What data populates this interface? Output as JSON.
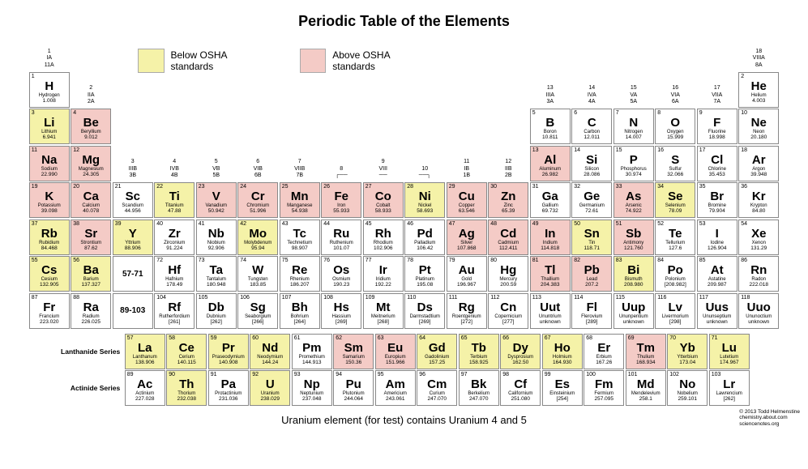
{
  "title": "Periodic Table of the Elements",
  "legend": {
    "below": {
      "label": "Below OSHA standards",
      "color": "#f5f2a8"
    },
    "above": {
      "label": "Above OSHA standards",
      "color": "#f4cbc6"
    }
  },
  "footnote": "Uranium element (for test) contains Uranium 4 and 5",
  "copyright": {
    "line1": "© 2013 Todd Helmenstine",
    "line2": "chemistry.about.com",
    "line3": "sciencenotes.org"
  },
  "series": {
    "lanth": "Lanthanide Series",
    "act": "Actinide Series",
    "lanth_range": "57-71",
    "act_range": "89-103"
  },
  "group_headers": [
    {
      "col": 1,
      "row": 1,
      "lines": [
        "1",
        "IA",
        "11A"
      ]
    },
    {
      "col": 2,
      "row": 2,
      "lines": [
        "2",
        "IIA",
        "2A"
      ]
    },
    {
      "col": 3,
      "row": 4,
      "lines": [
        "3",
        "IIIB",
        "3B"
      ]
    },
    {
      "col": 4,
      "row": 4,
      "lines": [
        "4",
        "IVB",
        "4B"
      ]
    },
    {
      "col": 5,
      "row": 4,
      "lines": [
        "5",
        "VB",
        "5B"
      ]
    },
    {
      "col": 6,
      "row": 4,
      "lines": [
        "6",
        "VIB",
        "6B"
      ]
    },
    {
      "col": 7,
      "row": 4,
      "lines": [
        "7",
        "VIIB",
        "7B"
      ]
    },
    {
      "col": 8,
      "row": 4,
      "lines": [
        "8",
        "",
        "┌──"
      ]
    },
    {
      "col": 9,
      "row": 4,
      "lines": [
        "9",
        "VIII",
        "── "
      ]
    },
    {
      "col": 10,
      "row": 4,
      "lines": [
        "10",
        "",
        "──┐"
      ]
    },
    {
      "col": 11,
      "row": 4,
      "lines": [
        "11",
        "IB",
        "1B"
      ]
    },
    {
      "col": 12,
      "row": 4,
      "lines": [
        "12",
        "IIB",
        "2B"
      ]
    },
    {
      "col": 13,
      "row": 2,
      "lines": [
        "13",
        "IIIA",
        "3A"
      ]
    },
    {
      "col": 14,
      "row": 2,
      "lines": [
        "14",
        "IVA",
        "4A"
      ]
    },
    {
      "col": 15,
      "row": 2,
      "lines": [
        "15",
        "VA",
        "5A"
      ]
    },
    {
      "col": 16,
      "row": 2,
      "lines": [
        "16",
        "VIA",
        "6A"
      ]
    },
    {
      "col": 17,
      "row": 2,
      "lines": [
        "17",
        "VIIA",
        "7A"
      ]
    },
    {
      "col": 18,
      "row": 1,
      "lines": [
        "18",
        "VIIIA",
        "8A"
      ]
    }
  ],
  "elements": [
    {
      "n": 1,
      "s": "H",
      "nm": "Hydrogen",
      "w": "1.008",
      "g": 1,
      "p": 1,
      "c": ""
    },
    {
      "n": 2,
      "s": "He",
      "nm": "Helium",
      "w": "4.003",
      "g": 18,
      "p": 1,
      "c": ""
    },
    {
      "n": 3,
      "s": "Li",
      "nm": "Lithium",
      "w": "6.941",
      "g": 1,
      "p": 2,
      "c": "below"
    },
    {
      "n": 4,
      "s": "Be",
      "nm": "Beryllium",
      "w": "9.012",
      "g": 2,
      "p": 2,
      "c": "above"
    },
    {
      "n": 5,
      "s": "B",
      "nm": "Boron",
      "w": "10.811",
      "g": 13,
      "p": 2,
      "c": ""
    },
    {
      "n": 6,
      "s": "C",
      "nm": "Carbon",
      "w": "12.011",
      "g": 14,
      "p": 2,
      "c": ""
    },
    {
      "n": 7,
      "s": "N",
      "nm": "Nitrogen",
      "w": "14.007",
      "g": 15,
      "p": 2,
      "c": ""
    },
    {
      "n": 8,
      "s": "O",
      "nm": "Oxygen",
      "w": "15.999",
      "g": 16,
      "p": 2,
      "c": ""
    },
    {
      "n": 9,
      "s": "F",
      "nm": "Fluorine",
      "w": "18.998",
      "g": 17,
      "p": 2,
      "c": ""
    },
    {
      "n": 10,
      "s": "Ne",
      "nm": "Neon",
      "w": "20.180",
      "g": 18,
      "p": 2,
      "c": ""
    },
    {
      "n": 11,
      "s": "Na",
      "nm": "Sodium",
      "w": "22.990",
      "g": 1,
      "p": 3,
      "c": "above"
    },
    {
      "n": 12,
      "s": "Mg",
      "nm": "Magnesium",
      "w": "24.305",
      "g": 2,
      "p": 3,
      "c": "above"
    },
    {
      "n": 13,
      "s": "Al",
      "nm": "Aluminum",
      "w": "26.982",
      "g": 13,
      "p": 3,
      "c": "above"
    },
    {
      "n": 14,
      "s": "Si",
      "nm": "Silicon",
      "w": "28.086",
      "g": 14,
      "p": 3,
      "c": ""
    },
    {
      "n": 15,
      "s": "P",
      "nm": "Phosphorus",
      "w": "30.974",
      "g": 15,
      "p": 3,
      "c": ""
    },
    {
      "n": 16,
      "s": "S",
      "nm": "Sulfur",
      "w": "32.066",
      "g": 16,
      "p": 3,
      "c": ""
    },
    {
      "n": 17,
      "s": "Cl",
      "nm": "Chlorine",
      "w": "35.453",
      "g": 17,
      "p": 3,
      "c": ""
    },
    {
      "n": 18,
      "s": "Ar",
      "nm": "Argon",
      "w": "39.948",
      "g": 18,
      "p": 3,
      "c": ""
    },
    {
      "n": 19,
      "s": "K",
      "nm": "Potassium",
      "w": "39.098",
      "g": 1,
      "p": 4,
      "c": "above"
    },
    {
      "n": 20,
      "s": "Ca",
      "nm": "Calcium",
      "w": "40.078",
      "g": 2,
      "p": 4,
      "c": "above"
    },
    {
      "n": 21,
      "s": "Sc",
      "nm": "Scandium",
      "w": "44.956",
      "g": 3,
      "p": 4,
      "c": ""
    },
    {
      "n": 22,
      "s": "Ti",
      "nm": "Titanium",
      "w": "47.88",
      "g": 4,
      "p": 4,
      "c": "below"
    },
    {
      "n": 23,
      "s": "V",
      "nm": "Vanadium",
      "w": "50.942",
      "g": 5,
      "p": 4,
      "c": "above"
    },
    {
      "n": 24,
      "s": "Cr",
      "nm": "Chromium",
      "w": "51.996",
      "g": 6,
      "p": 4,
      "c": "above"
    },
    {
      "n": 25,
      "s": "Mn",
      "nm": "Manganese",
      "w": "54.938",
      "g": 7,
      "p": 4,
      "c": "above"
    },
    {
      "n": 26,
      "s": "Fe",
      "nm": "Iron",
      "w": "55.933",
      "g": 8,
      "p": 4,
      "c": "above"
    },
    {
      "n": 27,
      "s": "Co",
      "nm": "Cobalt",
      "w": "58.933",
      "g": 9,
      "p": 4,
      "c": "above"
    },
    {
      "n": 28,
      "s": "Ni",
      "nm": "Nickel",
      "w": "58.693",
      "g": 10,
      "p": 4,
      "c": "below"
    },
    {
      "n": 29,
      "s": "Cu",
      "nm": "Copper",
      "w": "63.546",
      "g": 11,
      "p": 4,
      "c": "above"
    },
    {
      "n": 30,
      "s": "Zn",
      "nm": "Zinc",
      "w": "65.39",
      "g": 12,
      "p": 4,
      "c": "above"
    },
    {
      "n": 31,
      "s": "Ga",
      "nm": "Gallium",
      "w": "69.732",
      "g": 13,
      "p": 4,
      "c": ""
    },
    {
      "n": 32,
      "s": "Ge",
      "nm": "Germanium",
      "w": "72.61",
      "g": 14,
      "p": 4,
      "c": ""
    },
    {
      "n": 33,
      "s": "As",
      "nm": "Arsenic",
      "w": "74.922",
      "g": 15,
      "p": 4,
      "c": "above"
    },
    {
      "n": 34,
      "s": "Se",
      "nm": "Selenium",
      "w": "78.09",
      "g": 16,
      "p": 4,
      "c": "below"
    },
    {
      "n": 35,
      "s": "Br",
      "nm": "Bromine",
      "w": "79.904",
      "g": 17,
      "p": 4,
      "c": ""
    },
    {
      "n": 36,
      "s": "Kr",
      "nm": "Krypton",
      "w": "84.80",
      "g": 18,
      "p": 4,
      "c": ""
    },
    {
      "n": 37,
      "s": "Rb",
      "nm": "Rubidium",
      "w": "84.468",
      "g": 1,
      "p": 5,
      "c": "below"
    },
    {
      "n": 38,
      "s": "Sr",
      "nm": "Strontium",
      "w": "87.62",
      "g": 2,
      "p": 5,
      "c": "above"
    },
    {
      "n": 39,
      "s": "Y",
      "nm": "Yttrium",
      "w": "88.906",
      "g": 3,
      "p": 5,
      "c": "below"
    },
    {
      "n": 40,
      "s": "Zr",
      "nm": "Zirconium",
      "w": "91.224",
      "g": 4,
      "p": 5,
      "c": ""
    },
    {
      "n": 41,
      "s": "Nb",
      "nm": "Niobium",
      "w": "92.906",
      "g": 5,
      "p": 5,
      "c": ""
    },
    {
      "n": 42,
      "s": "Mo",
      "nm": "Molybdenum",
      "w": "95.94",
      "g": 6,
      "p": 5,
      "c": "below"
    },
    {
      "n": 43,
      "s": "Tc",
      "nm": "Technetium",
      "w": "98.907",
      "g": 7,
      "p": 5,
      "c": ""
    },
    {
      "n": 44,
      "s": "Ru",
      "nm": "Ruthenium",
      "w": "101.07",
      "g": 8,
      "p": 5,
      "c": ""
    },
    {
      "n": 45,
      "s": "Rh",
      "nm": "Rhodium",
      "w": "102.906",
      "g": 9,
      "p": 5,
      "c": ""
    },
    {
      "n": 46,
      "s": "Pd",
      "nm": "Palladium",
      "w": "106.42",
      "g": 10,
      "p": 5,
      "c": ""
    },
    {
      "n": 47,
      "s": "Ag",
      "nm": "Silver",
      "w": "107.868",
      "g": 11,
      "p": 5,
      "c": "above"
    },
    {
      "n": 48,
      "s": "Cd",
      "nm": "Cadmium",
      "w": "112.411",
      "g": 12,
      "p": 5,
      "c": "above"
    },
    {
      "n": 49,
      "s": "In",
      "nm": "Indium",
      "w": "114.818",
      "g": 13,
      "p": 5,
      "c": "above"
    },
    {
      "n": 50,
      "s": "Sn",
      "nm": "Tin",
      "w": "118.71",
      "g": 14,
      "p": 5,
      "c": "below"
    },
    {
      "n": 51,
      "s": "Sb",
      "nm": "Antimony",
      "w": "121.760",
      "g": 15,
      "p": 5,
      "c": "above"
    },
    {
      "n": 52,
      "s": "Te",
      "nm": "Tellurium",
      "w": "127.6",
      "g": 16,
      "p": 5,
      "c": ""
    },
    {
      "n": 53,
      "s": "I",
      "nm": "Iodine",
      "w": "126.904",
      "g": 17,
      "p": 5,
      "c": ""
    },
    {
      "n": 54,
      "s": "Xe",
      "nm": "Xenon",
      "w": "131.29",
      "g": 18,
      "p": 5,
      "c": ""
    },
    {
      "n": 55,
      "s": "Cs",
      "nm": "Cesium",
      "w": "132.905",
      "g": 1,
      "p": 6,
      "c": "below"
    },
    {
      "n": 56,
      "s": "Ba",
      "nm": "Barium",
      "w": "137.327",
      "g": 2,
      "p": 6,
      "c": "below"
    },
    {
      "n": 72,
      "s": "Hf",
      "nm": "Hafnium",
      "w": "178.49",
      "g": 4,
      "p": 6,
      "c": ""
    },
    {
      "n": 73,
      "s": "Ta",
      "nm": "Tantalum",
      "w": "180.948",
      "g": 5,
      "p": 6,
      "c": ""
    },
    {
      "n": 74,
      "s": "W",
      "nm": "Tungsten",
      "w": "183.85",
      "g": 6,
      "p": 6,
      "c": ""
    },
    {
      "n": 75,
      "s": "Re",
      "nm": "Rhenium",
      "w": "186.207",
      "g": 7,
      "p": 6,
      "c": ""
    },
    {
      "n": 76,
      "s": "Os",
      "nm": "Osmium",
      "w": "190.23",
      "g": 8,
      "p": 6,
      "c": ""
    },
    {
      "n": 77,
      "s": "Ir",
      "nm": "Iridium",
      "w": "192.22",
      "g": 9,
      "p": 6,
      "c": ""
    },
    {
      "n": 78,
      "s": "Pt",
      "nm": "Platinum",
      "w": "195.08",
      "g": 10,
      "p": 6,
      "c": ""
    },
    {
      "n": 79,
      "s": "Au",
      "nm": "Gold",
      "w": "196.967",
      "g": 11,
      "p": 6,
      "c": ""
    },
    {
      "n": 80,
      "s": "Hg",
      "nm": "Mercury",
      "w": "200.59",
      "g": 12,
      "p": 6,
      "c": ""
    },
    {
      "n": 81,
      "s": "Tl",
      "nm": "Thallium",
      "w": "204.383",
      "g": 13,
      "p": 6,
      "c": "above"
    },
    {
      "n": 82,
      "s": "Pb",
      "nm": "Lead",
      "w": "207.2",
      "g": 14,
      "p": 6,
      "c": "above"
    },
    {
      "n": 83,
      "s": "Bi",
      "nm": "Bismuth",
      "w": "208.980",
      "g": 15,
      "p": 6,
      "c": "below"
    },
    {
      "n": 84,
      "s": "Po",
      "nm": "Polonium",
      "w": "[208.982]",
      "g": 16,
      "p": 6,
      "c": ""
    },
    {
      "n": 85,
      "s": "At",
      "nm": "Astatine",
      "w": "209.987",
      "g": 17,
      "p": 6,
      "c": ""
    },
    {
      "n": 86,
      "s": "Rn",
      "nm": "Radon",
      "w": "222.018",
      "g": 18,
      "p": 6,
      "c": ""
    },
    {
      "n": 87,
      "s": "Fr",
      "nm": "Francium",
      "w": "223.020",
      "g": 1,
      "p": 7,
      "c": ""
    },
    {
      "n": 88,
      "s": "Ra",
      "nm": "Radium",
      "w": "226.025",
      "g": 2,
      "p": 7,
      "c": ""
    },
    {
      "n": 104,
      "s": "Rf",
      "nm": "Rutherfordium",
      "w": "[261]",
      "g": 4,
      "p": 7,
      "c": ""
    },
    {
      "n": 105,
      "s": "Db",
      "nm": "Dubnium",
      "w": "[262]",
      "g": 5,
      "p": 7,
      "c": ""
    },
    {
      "n": 106,
      "s": "Sg",
      "nm": "Seaborgium",
      "w": "[266]",
      "g": 6,
      "p": 7,
      "c": ""
    },
    {
      "n": 107,
      "s": "Bh",
      "nm": "Bohrium",
      "w": "[264]",
      "g": 7,
      "p": 7,
      "c": ""
    },
    {
      "n": 108,
      "s": "Hs",
      "nm": "Hassium",
      "w": "[269]",
      "g": 8,
      "p": 7,
      "c": ""
    },
    {
      "n": 109,
      "s": "Mt",
      "nm": "Meitnerium",
      "w": "[268]",
      "g": 9,
      "p": 7,
      "c": ""
    },
    {
      "n": 110,
      "s": "Ds",
      "nm": "Darmstadtium",
      "w": "[269]",
      "g": 10,
      "p": 7,
      "c": ""
    },
    {
      "n": 111,
      "s": "Rg",
      "nm": "Roentgenium",
      "w": "[272]",
      "g": 11,
      "p": 7,
      "c": ""
    },
    {
      "n": 112,
      "s": "Cn",
      "nm": "Copernicium",
      "w": "[277]",
      "g": 12,
      "p": 7,
      "c": ""
    },
    {
      "n": 113,
      "s": "Uut",
      "nm": "Ununtrium",
      "w": "unknown",
      "g": 13,
      "p": 7,
      "c": ""
    },
    {
      "n": 114,
      "s": "Fl",
      "nm": "Flerovium",
      "w": "[289]",
      "g": 14,
      "p": 7,
      "c": ""
    },
    {
      "n": 115,
      "s": "Uup",
      "nm": "Ununpentium",
      "w": "unknown",
      "g": 15,
      "p": 7,
      "c": ""
    },
    {
      "n": 116,
      "s": "Lv",
      "nm": "Livermorium",
      "w": "[298]",
      "g": 16,
      "p": 7,
      "c": ""
    },
    {
      "n": 117,
      "s": "Uus",
      "nm": "Ununseptium",
      "w": "unknown",
      "g": 17,
      "p": 7,
      "c": ""
    },
    {
      "n": 118,
      "s": "Uuo",
      "nm": "Ununoctium",
      "w": "unknown",
      "g": 18,
      "p": 7,
      "c": ""
    }
  ],
  "lanthanides": [
    {
      "n": 57,
      "s": "La",
      "nm": "Lanthanum",
      "w": "138.906",
      "c": "below"
    },
    {
      "n": 58,
      "s": "Ce",
      "nm": "Cerium",
      "w": "140.115",
      "c": "below"
    },
    {
      "n": 59,
      "s": "Pr",
      "nm": "Praseodymium",
      "w": "140.908",
      "c": "below"
    },
    {
      "n": 60,
      "s": "Nd",
      "nm": "Neodymium",
      "w": "144.24",
      "c": "below"
    },
    {
      "n": 61,
      "s": "Pm",
      "nm": "Promethium",
      "w": "144.913",
      "c": ""
    },
    {
      "n": 62,
      "s": "Sm",
      "nm": "Samarium",
      "w": "150.36",
      "c": "above"
    },
    {
      "n": 63,
      "s": "Eu",
      "nm": "Europium",
      "w": "151.966",
      "c": "above"
    },
    {
      "n": 64,
      "s": "Gd",
      "nm": "Gadolinium",
      "w": "157.25",
      "c": "below"
    },
    {
      "n": 65,
      "s": "Tb",
      "nm": "Terbium",
      "w": "158.925",
      "c": "below"
    },
    {
      "n": 66,
      "s": "Dy",
      "nm": "Dysprosium",
      "w": "162.50",
      "c": "below"
    },
    {
      "n": 67,
      "s": "Ho",
      "nm": "Holmium",
      "w": "164.930",
      "c": "below"
    },
    {
      "n": 68,
      "s": "Er",
      "nm": "Erbium",
      "w": "167.26",
      "c": ""
    },
    {
      "n": 69,
      "s": "Tm",
      "nm": "Thulium",
      "w": "168.934",
      "c": "above"
    },
    {
      "n": 70,
      "s": "Yb",
      "nm": "Ytterbium",
      "w": "173.04",
      "c": "below"
    },
    {
      "n": 71,
      "s": "Lu",
      "nm": "Lutetium",
      "w": "174.967",
      "c": "below"
    }
  ],
  "actinides": [
    {
      "n": 89,
      "s": "Ac",
      "nm": "Actinium",
      "w": "227.028",
      "c": ""
    },
    {
      "n": 90,
      "s": "Th",
      "nm": "Thorium",
      "w": "232.038",
      "c": "below"
    },
    {
      "n": 91,
      "s": "Pa",
      "nm": "Protactinium",
      "w": "231.036",
      "c": ""
    },
    {
      "n": 92,
      "s": "U",
      "nm": "Uranium",
      "w": "238.029",
      "c": "below"
    },
    {
      "n": 93,
      "s": "Np",
      "nm": "Neptunium",
      "w": "237.048",
      "c": ""
    },
    {
      "n": 94,
      "s": "Pu",
      "nm": "Plutonium",
      "w": "244.064",
      "c": ""
    },
    {
      "n": 95,
      "s": "Am",
      "nm": "Americium",
      "w": "243.061",
      "c": ""
    },
    {
      "n": 96,
      "s": "Cm",
      "nm": "Curium",
      "w": "247.070",
      "c": ""
    },
    {
      "n": 97,
      "s": "Bk",
      "nm": "Berkelium",
      "w": "247.070",
      "c": ""
    },
    {
      "n": 98,
      "s": "Cf",
      "nm": "Californium",
      "w": "251.080",
      "c": ""
    },
    {
      "n": 99,
      "s": "Es",
      "nm": "Einsteinium",
      "w": "[254]",
      "c": ""
    },
    {
      "n": 100,
      "s": "Fm",
      "nm": "Fermium",
      "w": "257.095",
      "c": ""
    },
    {
      "n": 101,
      "s": "Md",
      "nm": "Mendelevium",
      "w": "258.1",
      "c": ""
    },
    {
      "n": 102,
      "s": "No",
      "nm": "Nobelium",
      "w": "259.101",
      "c": ""
    },
    {
      "n": 103,
      "s": "Lr",
      "nm": "Lawrencium",
      "w": "[262]",
      "c": ""
    }
  ]
}
